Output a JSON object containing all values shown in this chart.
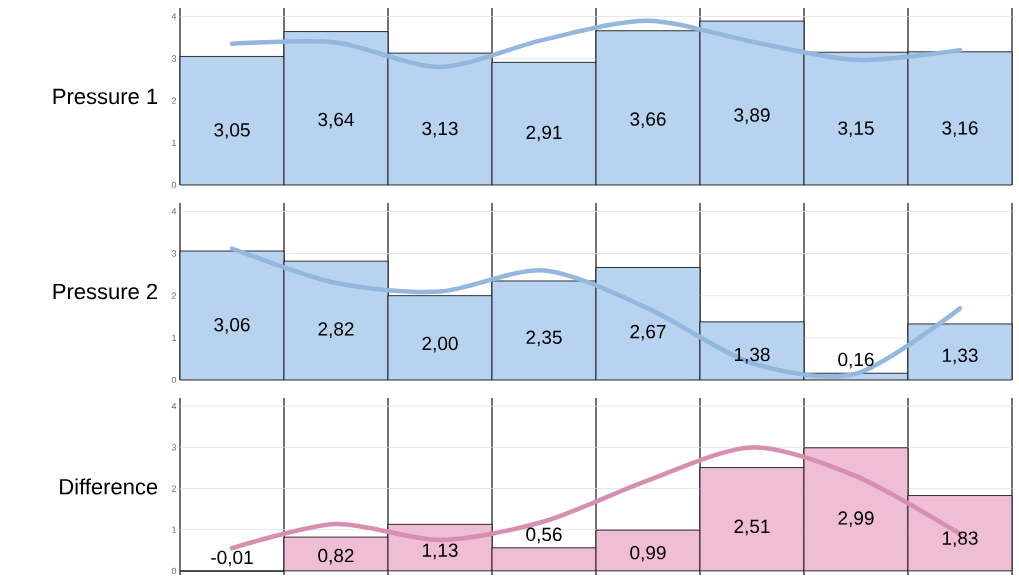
{
  "chart_data": [
    {
      "type": "bar",
      "ylabel": "Pressure 1",
      "categories": [
        null,
        null,
        null,
        null,
        null,
        null,
        null,
        null
      ],
      "series": [
        {
          "color": "#b7d3ef",
          "values": [
            3.05,
            3.64,
            3.13,
            2.91,
            3.66,
            3.89,
            3.15,
            3.16
          ],
          "value_labels": [
            "3,05",
            "3,64",
            "3,13",
            "2,91",
            "3,66",
            "3,89",
            "3,15",
            "3,16"
          ]
        },
        {
          "type": "line",
          "color": "#93b7dd",
          "values": [
            3.35,
            3.38,
            2.8,
            3.45,
            3.9,
            3.4,
            2.97,
            3.2
          ]
        }
      ],
      "ylim": [
        0,
        4.2
      ],
      "yticks": [
        0,
        1,
        2,
        3,
        4
      ],
      "grid": true,
      "tick_labels": "y"
    },
    {
      "type": "bar",
      "ylabel": "Pressure 2",
      "categories": [
        null,
        null,
        null,
        null,
        null,
        null,
        null,
        null
      ],
      "series": [
        {
          "color": "#b7d3ef",
          "values": [
            3.06,
            2.82,
            2.0,
            2.35,
            2.67,
            1.38,
            0.16,
            1.33
          ],
          "value_labels": [
            "3,06",
            "2,82",
            "2,00",
            "2,35",
            "2,67",
            "1,38",
            "0,16",
            "1,33"
          ]
        },
        {
          "type": "line",
          "color": "#93b7dd",
          "values": [
            3.12,
            2.3,
            2.1,
            2.6,
            1.7,
            0.4,
            0.15,
            1.7
          ]
        }
      ],
      "ylim": [
        0,
        4.2
      ],
      "yticks": [
        0,
        1,
        2,
        3,
        4
      ],
      "grid": true,
      "tick_labels": "y"
    },
    {
      "type": "bar",
      "ylabel": "Difference",
      "categories": [
        null,
        null,
        null,
        null,
        null,
        null,
        null,
        null
      ],
      "series": [
        {
          "color": "#efbdd5",
          "values": [
            -0.01,
            0.82,
            1.13,
            0.56,
            0.99,
            2.51,
            2.99,
            1.83
          ],
          "value_labels": [
            "-0,01",
            "0,82",
            "1,13",
            "0,56",
            "0,99",
            "2,51",
            "2,99",
            "1,83"
          ]
        },
        {
          "type": "line",
          "color": "#d58fb0",
          "values": [
            0.55,
            1.14,
            0.75,
            1.2,
            2.2,
            3.0,
            2.3,
            0.9
          ]
        }
      ],
      "ylim": [
        -0.1,
        4.2
      ],
      "yticks": [
        0,
        1,
        2,
        3,
        4
      ],
      "grid": true,
      "tick_labels": "y"
    }
  ]
}
